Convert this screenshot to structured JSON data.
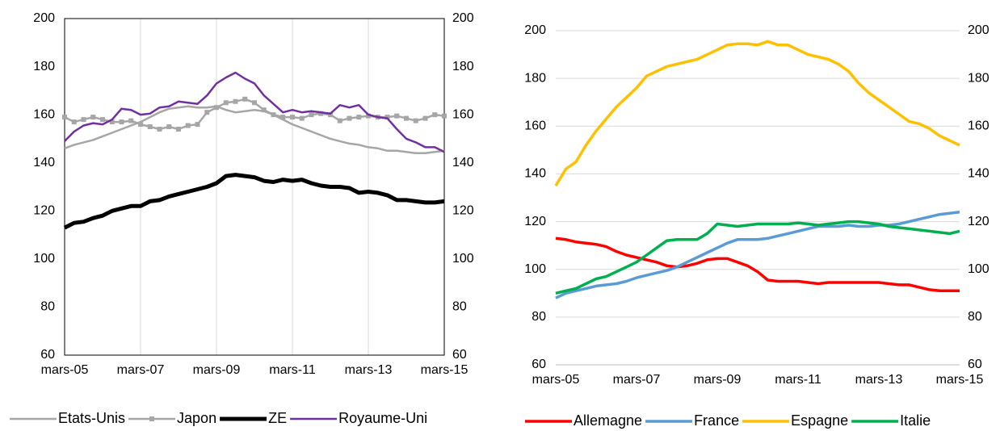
{
  "chart_data": [
    {
      "type": "line",
      "categories": [
        "mars-05",
        null,
        null,
        null,
        null,
        null,
        null,
        null,
        "mars-07",
        null,
        null,
        null,
        null,
        null,
        null,
        null,
        "mars-09",
        null,
        null,
        null,
        null,
        null,
        null,
        null,
        "mars-11",
        null,
        null,
        null,
        null,
        null,
        null,
        null,
        "mars-13",
        null,
        null,
        null,
        null,
        null,
        null,
        null,
        "mars-15"
      ],
      "ylim": [
        60,
        200
      ],
      "yticks": [
        60,
        80,
        100,
        120,
        140,
        160,
        180,
        200
      ],
      "y2lim": [
        60,
        200
      ],
      "y2ticks": [
        60,
        80,
        100,
        120,
        140,
        160,
        180,
        200
      ],
      "grid": "x",
      "frame": true,
      "legend": "bottom",
      "series": [
        {
          "name": "Etats-Unis",
          "color": "#a6a6a6",
          "line_width": 2.5,
          "values": [
            146,
            147.5,
            148.5,
            149.5,
            151,
            152.5,
            154,
            155.5,
            157,
            159,
            161,
            162.5,
            163,
            163.5,
            163,
            163,
            163.5,
            162,
            161,
            161.5,
            162,
            161.5,
            160,
            158,
            156,
            154.5,
            153,
            151.5,
            150,
            149,
            148,
            147.5,
            146.5,
            146,
            145,
            145,
            144.5,
            144,
            144,
            144.5,
            145
          ]
        },
        {
          "name": "Japon",
          "color": "#a6a6a6",
          "line_width": 2.5,
          "marker": "square",
          "values": [
            159,
            157,
            158,
            159,
            158,
            157,
            157,
            157.5,
            156,
            155,
            154,
            155,
            154,
            155.5,
            156,
            161,
            163,
            165,
            165.5,
            166.5,
            165,
            162,
            160,
            159,
            159,
            158.5,
            160,
            160.5,
            160,
            157.5,
            158.5,
            159,
            159.5,
            159,
            159,
            159.5,
            158.5,
            157.5,
            158.5,
            160,
            159.5
          ]
        },
        {
          "name": "ZE",
          "color": "#000000",
          "line_width": 5,
          "values": [
            113,
            115,
            115.5,
            117,
            118,
            120,
            121,
            122,
            122,
            124,
            124.5,
            126,
            127,
            128,
            129,
            130,
            131.5,
            134.5,
            135,
            134.5,
            134,
            132.5,
            132,
            133,
            132.5,
            133,
            131.5,
            130.5,
            130,
            130,
            129.5,
            127.5,
            128,
            127.5,
            126.5,
            124.5,
            124.5,
            124,
            123.5,
            123.5,
            124
          ]
        },
        {
          "name": "Royaume-Uni",
          "color": "#7030a0",
          "line_width": 2.5,
          "values": [
            149,
            153,
            155.5,
            156.5,
            156,
            158,
            162.5,
            162,
            160,
            160.5,
            163,
            163.5,
            165.5,
            165,
            164.5,
            168,
            173,
            175.5,
            177.5,
            175,
            173,
            168,
            164.5,
            161,
            162,
            161,
            161.5,
            161,
            160.5,
            164,
            163,
            164,
            160,
            159,
            158.5,
            154,
            150,
            148.5,
            146.5,
            146.5,
            144.5
          ]
        }
      ]
    },
    {
      "type": "line",
      "categories": [
        "mars-05",
        null,
        null,
        null,
        null,
        null,
        null,
        null,
        "mars-07",
        null,
        null,
        null,
        null,
        null,
        null,
        null,
        "mars-09",
        null,
        null,
        null,
        null,
        null,
        null,
        null,
        "mars-11",
        null,
        null,
        null,
        null,
        null,
        null,
        null,
        "mars-13",
        null,
        null,
        null,
        null,
        null,
        null,
        null,
        "mars-15"
      ],
      "ylim": [
        60,
        200
      ],
      "yticks": [
        60,
        80,
        100,
        120,
        140,
        160,
        180,
        200
      ],
      "y2lim": [
        60,
        200
      ],
      "y2ticks": [
        60,
        80,
        100,
        120,
        140,
        160,
        180,
        200
      ],
      "grid": "y",
      "frame": false,
      "legend": "bottom",
      "series": [
        {
          "name": "Allemagne",
          "color": "#ff0000",
          "line_width": 3.5,
          "values": [
            113,
            112.5,
            111.5,
            111,
            110.5,
            109.5,
            107.5,
            106,
            105,
            104,
            103,
            101.5,
            101,
            101.5,
            102.5,
            104,
            104.5,
            104.5,
            103,
            101.5,
            99,
            95.5,
            95,
            95,
            95,
            94.5,
            94,
            94.5,
            94.5,
            94.5,
            94.5,
            94.5,
            94.5,
            94,
            93.5,
            93.5,
            92.5,
            91.5,
            91,
            91,
            91
          ]
        },
        {
          "name": "France",
          "color": "#5b9bd5",
          "line_width": 3.5,
          "values": [
            88,
            90,
            91,
            92,
            93,
            93.5,
            94,
            95,
            96.5,
            97.5,
            98.5,
            99.5,
            101,
            103,
            105,
            107,
            109,
            111,
            112.5,
            112.5,
            112.5,
            113,
            114,
            115,
            116,
            117,
            118,
            118,
            118,
            118.5,
            118,
            118,
            118.5,
            118.5,
            119,
            120,
            121,
            122,
            123,
            123.5,
            124
          ]
        },
        {
          "name": "Espagne",
          "color": "#ffc000",
          "line_width": 3.5,
          "values": [
            135,
            142,
            145,
            152,
            158,
            163,
            168,
            172,
            176,
            181,
            183,
            185,
            186,
            187,
            188,
            190,
            192,
            194,
            194.5,
            194.5,
            194,
            195.5,
            194,
            194,
            192,
            190,
            189,
            188,
            186,
            183,
            178,
            174,
            171,
            168,
            165,
            162,
            161,
            159,
            156,
            154,
            152
          ]
        },
        {
          "name": "Italie",
          "color": "#00b050",
          "line_width": 3.5,
          "values": [
            90,
            91,
            92,
            94,
            96,
            97,
            99,
            101,
            103,
            106,
            109,
            112,
            112.5,
            112.5,
            112.5,
            115,
            119,
            118.5,
            118,
            118.5,
            119,
            119,
            119,
            119,
            119.5,
            119,
            118.5,
            119,
            119.5,
            120,
            120,
            119.5,
            119,
            118,
            117.5,
            117,
            116.5,
            116,
            115.5,
            115,
            116
          ]
        }
      ]
    }
  ]
}
